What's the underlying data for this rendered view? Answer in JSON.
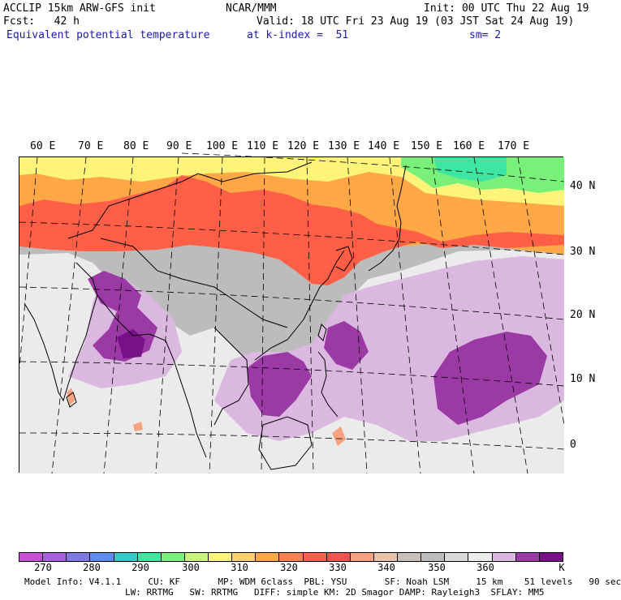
{
  "header": {
    "left1": "ACCLIP 15km ARW-GFS init",
    "center1": "NCAR/MMM",
    "right1": "Init: 00 UTC Thu 22 Aug 19",
    "left2": "Fcst:   42 h",
    "right2": "Valid: 18 UTC Fri 23 Aug 19 (03 JST Sat 24 Aug 19)",
    "field": "Equivalent potential temperature",
    "level": "at k-index =  51",
    "smooth": "sm= 2"
  },
  "map": {
    "lon_labels": [
      "60 E",
      "70 E",
      "80 E",
      "90 E",
      "100 E",
      "110 E",
      "120 E",
      "130 E",
      "140 E",
      "150 E",
      "160 E",
      "170 E"
    ],
    "lat_labels": [
      "40 N",
      "30 N",
      "20 N",
      "10 N",
      "0"
    ],
    "colors": {
      "coast": "#000000",
      "grid": "#000000",
      "warm_belt": "#ff5f46",
      "orange": "#ffa845",
      "yellow": "#fff47a",
      "green": "#78f07a",
      "teal": "#3ee7a1",
      "grey": "#bcbcbc",
      "light_grey": "#ebebeb",
      "lilac": "#dbb8e0",
      "purple": "#9b3aa5",
      "deep_purple": "#7a0f8a",
      "salmon": "#f6a27f"
    }
  },
  "colorbar": {
    "colors": [
      "#c651d7",
      "#a860de",
      "#7f79e4",
      "#5c8cee",
      "#36c7c9",
      "#3ee7a1",
      "#78f07a",
      "#c8f47a",
      "#fff47a",
      "#ffd070",
      "#ffa845",
      "#ff8150",
      "#ff5f46",
      "#f0544e",
      "#f6a27f",
      "#e8c4a8",
      "#c8c0b8",
      "#bcbcbc",
      "#d8d8d8",
      "#ebebeb",
      "#dbb8e0",
      "#9b3aa5",
      "#7a0f8a"
    ],
    "labels": [
      "270",
      "280",
      "290",
      "300",
      "310",
      "320",
      "330",
      "340",
      "350",
      "360",
      "K"
    ]
  },
  "footer": {
    "line1": "Model Info: V4.1.1     CU: KF       MP: WDM 6class  PBL: YSU       SF: Noah LSM     15 km    51 levels   90 sec",
    "line2": "LW: RRTMG   SW: RRTMG   DIFF: simple KM: 2D Smagor DAMP: Rayleigh3  SFLAY: MM5"
  }
}
